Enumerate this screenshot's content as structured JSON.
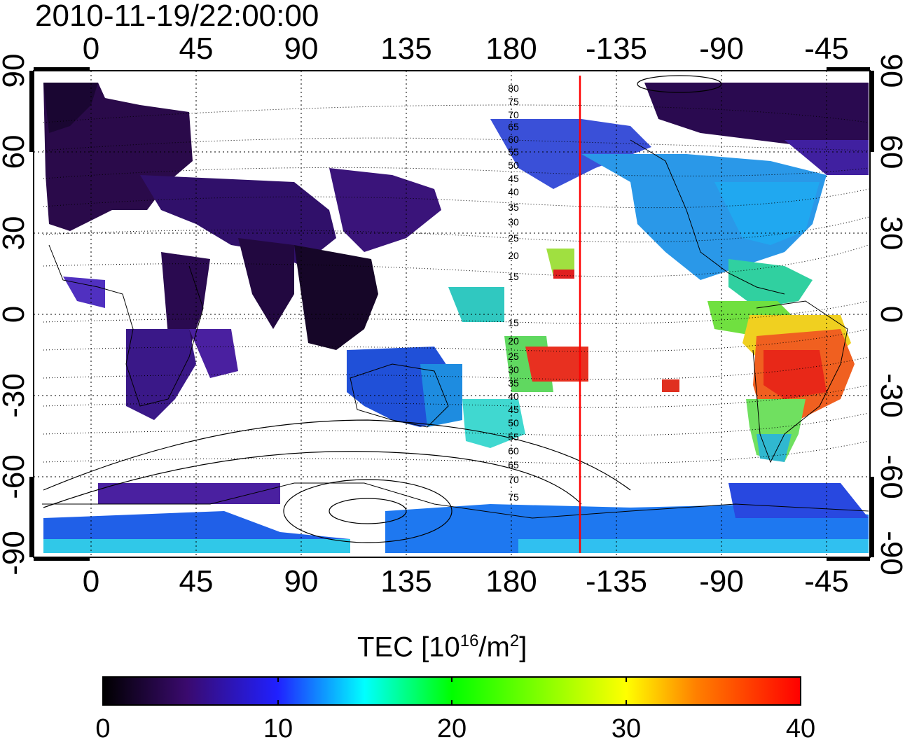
{
  "title": "2010-11-19/22:00:00",
  "map": {
    "lon_ticks_top": [
      "0",
      "45",
      "90",
      "135",
      "180",
      "-135",
      "-90",
      "-45"
    ],
    "lon_ticks_bottom": [
      "0",
      "45",
      "90",
      "135",
      "180",
      "-135",
      "-90",
      "-45"
    ],
    "lat_ticks_left": [
      "90",
      "60",
      "30",
      "0",
      "-30",
      "-60",
      "-90"
    ],
    "lat_ticks_right": [
      "90",
      "60",
      "30",
      "0",
      "-30",
      "-60",
      "-90"
    ],
    "magnetic_latitude_labels_north": [
      "80",
      "75",
      "70",
      "65",
      "60",
      "55",
      "50",
      "45",
      "40",
      "35",
      "30",
      "25",
      "20",
      "15"
    ],
    "magnetic_latitude_labels_south": [
      "15",
      "20",
      "25",
      "30",
      "35",
      "40",
      "45",
      "50",
      "55",
      "60",
      "65",
      "70",
      "75"
    ],
    "reference_meridian_color": "#ff0000",
    "grid": "dotted"
  },
  "colorbar": {
    "title_main": "TEC  [10",
    "title_exp1": "16",
    "title_mid": "/m",
    "title_exp2": "2",
    "title_end": "]",
    "ticks": [
      "0",
      "10",
      "20",
      "30",
      "40"
    ],
    "range": [
      0,
      40
    ],
    "colors": [
      "#000000",
      "#3a0a6e",
      "#2020ff",
      "#00ffff",
      "#00ff00",
      "#ffff00",
      "#ff8000",
      "#ff0000"
    ]
  }
}
